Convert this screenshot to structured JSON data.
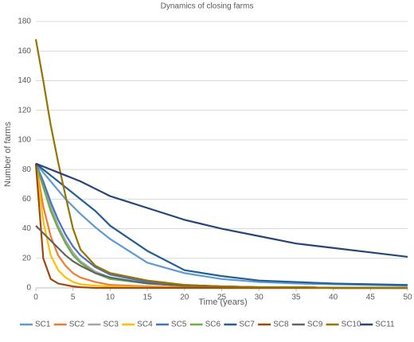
{
  "chart_data": {
    "type": "line",
    "title": "Dynamics of closing farms",
    "x_label": "Time (years)",
    "y_label": "Number of farms",
    "x": [
      0,
      1,
      2,
      3,
      4,
      5,
      6,
      8,
      10,
      15,
      20,
      25,
      30,
      35,
      40,
      45,
      50
    ],
    "xlim": [
      0,
      50
    ],
    "xticks": [
      0,
      5,
      10,
      15,
      20,
      25,
      30,
      35,
      40,
      45,
      50
    ],
    "ylim": [
      0,
      180
    ],
    "yticks": [
      0,
      20,
      40,
      60,
      80,
      100,
      120,
      140,
      160,
      180
    ],
    "grid": true,
    "legend": "bottom",
    "series": [
      {
        "name": "SC1",
        "color": "#5b9bd5",
        "values": [
          84,
          78,
          72,
          66,
          60,
          55,
          50,
          41,
          33,
          17,
          10,
          6,
          4,
          3,
          2.5,
          2,
          1.5
        ]
      },
      {
        "name": "SC2",
        "color": "#ed7d31",
        "values": [
          84,
          55,
          35,
          22,
          15,
          10,
          7,
          4,
          2,
          1,
          0.5,
          0,
          0,
          0,
          0,
          0,
          0
        ]
      },
      {
        "name": "SC3",
        "color": "#a5a5a5",
        "values": [
          84,
          70,
          55,
          42,
          32,
          24,
          18,
          11,
          7,
          3,
          1.5,
          1,
          0.5,
          0.5,
          0,
          0,
          0
        ]
      },
      {
        "name": "SC4",
        "color": "#ffc000",
        "values": [
          84,
          45,
          22,
          12,
          7,
          4,
          2.5,
          1.5,
          1,
          0.5,
          0,
          0,
          0,
          0,
          0,
          0,
          0
        ]
      },
      {
        "name": "SC5",
        "color": "#4472c4",
        "values": [
          84,
          72,
          58,
          46,
          36,
          28,
          22,
          14,
          9,
          4,
          2,
          1,
          0.5,
          0.5,
          0,
          0,
          0
        ]
      },
      {
        "name": "SC6",
        "color": "#70ad47",
        "values": [
          84,
          68,
          52,
          40,
          30,
          22,
          17,
          10,
          6,
          3,
          1.5,
          1,
          0.5,
          0.5,
          0,
          0,
          0
        ]
      },
      {
        "name": "SC7",
        "color": "#255e91",
        "values": [
          84,
          80,
          76,
          72,
          68,
          64,
          60,
          52,
          42,
          25,
          12,
          8,
          5,
          4,
          3,
          2.5,
          2
        ]
      },
      {
        "name": "SC8",
        "color": "#9e480e",
        "values": [
          84,
          20,
          6,
          3,
          2,
          1,
          0.5,
          0,
          0,
          0,
          0,
          0,
          0,
          0,
          0,
          0,
          0
        ]
      },
      {
        "name": "SC9",
        "color": "#636363",
        "values": [
          42,
          37,
          32,
          27,
          22,
          18,
          15,
          10,
          7,
          3,
          1.5,
          1,
          0.5,
          0.5,
          0,
          0,
          0
        ]
      },
      {
        "name": "SC10",
        "color": "#997300",
        "values": [
          168,
          140,
          110,
          85,
          62,
          40,
          26,
          15,
          10,
          5,
          2,
          1,
          0.5,
          0.5,
          0,
          0,
          0
        ]
      },
      {
        "name": "SC11",
        "color": "#264478",
        "values": [
          84,
          82,
          80,
          78,
          76,
          74,
          72,
          67,
          62,
          54,
          46,
          40,
          35,
          30,
          27,
          24,
          21
        ]
      }
    ]
  }
}
